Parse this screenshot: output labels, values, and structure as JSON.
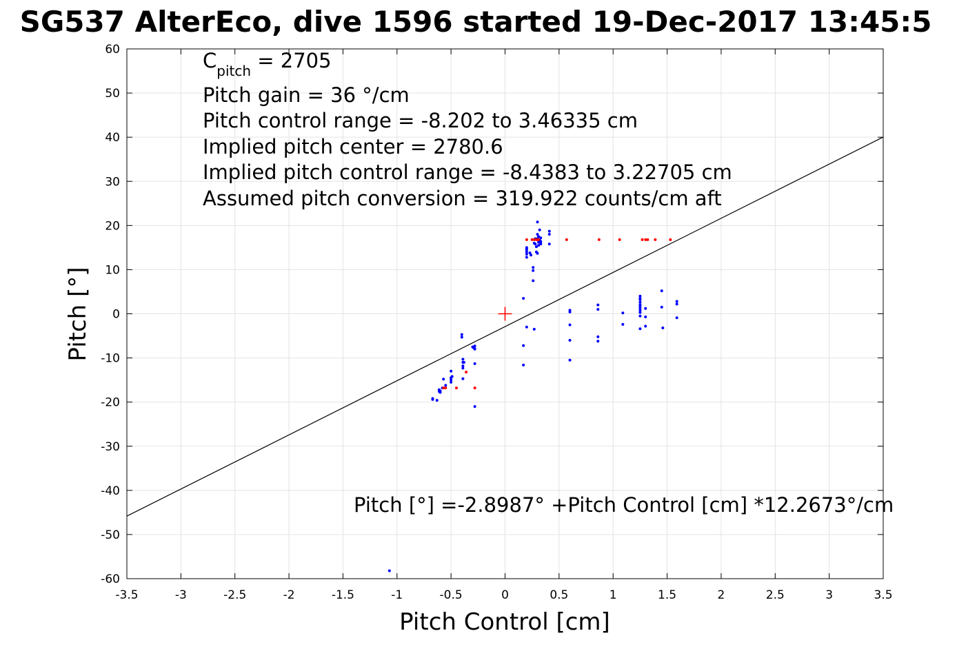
{
  "chart_data": {
    "type": "scatter",
    "title": "SG537 AlterEco, dive 1596 started 19-Dec-2017 13:45:5",
    "xlabel": "Pitch Control [cm]",
    "ylabel": "Pitch [°]",
    "xlim": [
      -3.5,
      3.5
    ],
    "ylim": [
      -60,
      60
    ],
    "xticks": [
      -3.5,
      -3,
      -2.5,
      -2,
      -1.5,
      -1,
      -0.5,
      0,
      0.5,
      1,
      1.5,
      2,
      2.5,
      3,
      3.5
    ],
    "xtick_labels": [
      "-3.5",
      "-3",
      "-2.5",
      "-2",
      "-1.5",
      "-1",
      "-0.5",
      "0",
      "0.5",
      "1",
      "1.5",
      "2",
      "2.5",
      "3",
      "3.5"
    ],
    "yticks": [
      -60,
      -50,
      -40,
      -30,
      -20,
      -10,
      0,
      10,
      20,
      30,
      40,
      50,
      60
    ],
    "ytick_labels": [
      "-60",
      "-50",
      "-40",
      "-30",
      "-20",
      "-10",
      "0",
      "10",
      "20",
      "30",
      "40",
      "50",
      "60"
    ],
    "grid": true,
    "colors": {
      "observed": "#0000ff",
      "fixed": "#ff0000",
      "fit": "#000000",
      "center": "#ff0000"
    },
    "fit_line": {
      "intercept": -2.8987,
      "slope": 12.2673
    },
    "center_marker": {
      "x": 0,
      "y": 0
    },
    "series": [
      {
        "color": "#0000ff",
        "x": [
          -0.67,
          -0.67,
          -0.63,
          -0.61,
          -0.61,
          -0.6,
          -0.6,
          -0.58,
          -0.57,
          -0.55,
          -0.5,
          -0.5,
          -0.5,
          -0.5,
          -0.49,
          -0.4,
          -0.4,
          -0.39,
          -0.39,
          -0.39,
          -0.39,
          -0.39,
          -0.38,
          -0.3,
          -0.29,
          -0.28,
          -0.28,
          -0.28,
          -0.28,
          -0.28,
          0.17,
          0.17,
          0.17,
          0.2,
          0.2,
          0.2,
          0.2,
          0.2,
          0.2,
          0.2,
          0.23,
          0.24,
          0.26,
          0.26,
          0.26,
          0.27,
          0.27,
          0.28,
          0.28,
          0.29,
          0.29,
          0.3,
          0.3,
          0.3,
          0.3,
          0.3,
          0.31,
          0.31,
          0.31,
          0.32,
          0.32,
          0.32,
          0.33,
          0.33,
          0.33,
          0.33,
          0.41,
          0.41,
          0.41,
          0.6,
          0.6,
          0.6,
          0.6,
          0.6,
          0.86,
          0.86,
          0.86,
          0.86,
          1.09,
          1.09,
          1.25,
          1.25,
          1.25,
          1.25,
          1.25,
          1.25,
          1.25,
          1.25,
          1.25,
          1.25,
          1.25,
          1.3,
          1.3,
          1.3,
          1.45,
          1.45,
          1.46,
          1.59,
          1.59,
          1.59,
          -1.07
        ],
        "y": [
          -19.2,
          -19.4,
          -19.6,
          -17.2,
          -17.6,
          -17.8,
          -17.5,
          -16.8,
          -14.8,
          -16.2,
          -13.0,
          -14.5,
          -15.0,
          -15.5,
          -14.2,
          -4.7,
          -5.3,
          -10.3,
          -11.0,
          -11.8,
          -12.3,
          -14.7,
          -11.0,
          -7.5,
          -7.7,
          -7.9,
          -7.3,
          -11.3,
          -21.0,
          -8.0,
          3.5,
          -7.2,
          -11.6,
          12.8,
          13.5,
          14.0,
          14.5,
          14.8,
          15.0,
          -3.0,
          13.8,
          13.3,
          10.5,
          9.8,
          7.5,
          -3.5,
          16.0,
          17.0,
          15.8,
          15.2,
          14.0,
          13.7,
          20.8,
          18.0,
          17.0,
          16.8,
          16.2,
          15.5,
          17.5,
          19.0,
          16.2,
          16.7,
          16.0,
          15.8,
          16.4,
          17.2,
          18.0,
          18.7,
          15.8,
          0.8,
          0.4,
          -2.5,
          -6.0,
          -10.5,
          2.0,
          1.0,
          -5.2,
          -6.2,
          0.2,
          -2.4,
          4.0,
          3.2,
          3.5,
          2.6,
          2.0,
          1.8,
          1.3,
          0.8,
          0.3,
          -0.5,
          -3.4,
          1.2,
          -0.7,
          -2.8,
          5.2,
          1.5,
          -3.2,
          2.8,
          2.2,
          -0.9,
          -58.2
        ]
      },
      {
        "color": "#ff0000",
        "x": [
          -0.57,
          -0.55,
          -0.45,
          -0.36,
          -0.28,
          0.2,
          0.25,
          0.27,
          0.29,
          0.3,
          0.31,
          0.57,
          0.87,
          1.06,
          1.27,
          1.3,
          1.32,
          1.39,
          1.53
        ],
        "y": [
          -16.8,
          -16.8,
          -16.8,
          -13.2,
          -16.8,
          16.8,
          16.8,
          16.8,
          16.8,
          16.8,
          16.8,
          16.8,
          16.8,
          16.8,
          16.8,
          16.8,
          16.8,
          16.8,
          16.8
        ]
      }
    ],
    "annotations": {
      "c_pitch_main": "C",
      "c_pitch_sub": "pitch",
      "c_pitch_value": " = 2705",
      "lines": [
        "Pitch gain = 36 °/cm",
        "Pitch control range = -8.202 to 3.46335 cm",
        "Implied pitch center = 2780.6",
        "Implied pitch control range = -8.4383 to 3.22705 cm",
        "Assumed pitch conversion = 319.922 counts/cm aft"
      ],
      "fit_equation": "Pitch [°] =-2.8987° +Pitch Control [cm] *12.2673°/cm"
    }
  }
}
